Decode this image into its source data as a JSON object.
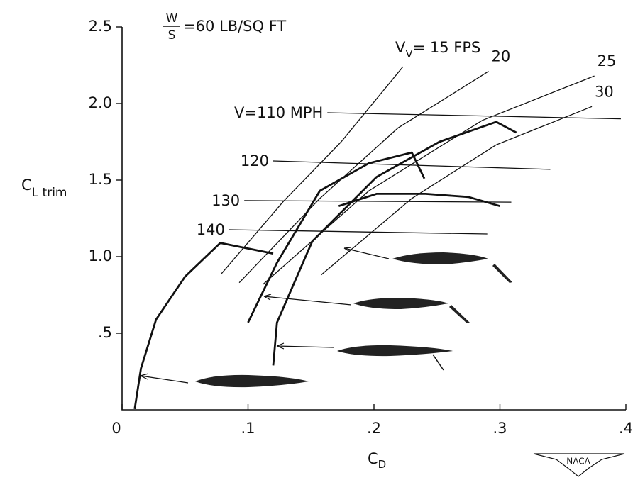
{
  "chart_data": {
    "type": "line",
    "title": {
      "num": "W",
      "den": "S",
      "rest": "=60 LB/SQ FT"
    },
    "vv_label": {
      "main": "V",
      "sub": "V",
      "rest": "= 15 FPS"
    },
    "y_label": {
      "main": "C",
      "sub": "L trim"
    },
    "x_label": {
      "main": "C",
      "sub": "D"
    },
    "xlim": [
      0,
      0.4
    ],
    "ylim": [
      0,
      2.5
    ],
    "xticks": [
      0,
      {
        "value": 0.1,
        "label": ".1"
      },
      {
        "value": 0.2,
        "label": ".2"
      },
      {
        "value": 0.3,
        "label": ".3"
      },
      {
        "value": 0.4,
        "label": ".4"
      }
    ],
    "yticks": [
      {
        "value": 0.5,
        "label": ".5"
      },
      {
        "value": 1.0,
        "label": "1.0"
      },
      {
        "value": 1.5,
        "label": "1.5"
      },
      {
        "value": 2.0,
        "label": "2.0"
      },
      {
        "value": 2.5,
        "label": "2.5"
      }
    ],
    "color": "#111111",
    "series": [
      {
        "x": [
          0.079,
          0.128,
          0.174,
          0.223
        ],
        "values": [
          0.89,
          1.36,
          1.75,
          2.24
        ]
      },
      {
        "name": "20",
        "x": [
          0.093,
          0.157,
          0.219,
          0.291
        ],
        "values": [
          0.83,
          1.38,
          1.84,
          2.21
        ]
      },
      {
        "name": "25",
        "x": [
          0.112,
          0.196,
          0.286,
          0.375
        ],
        "values": [
          0.82,
          1.43,
          1.89,
          2.18
        ]
      },
      {
        "name": "30",
        "x": [
          0.158,
          0.23,
          0.297,
          0.373
        ],
        "values": [
          0.88,
          1.38,
          1.73,
          1.98
        ]
      },
      {
        "name": "V=110 MPH",
        "x": [
          0.163,
          0.396
        ],
        "values": [
          1.94,
          1.9
        ]
      },
      {
        "name": "120",
        "x": [
          0.12,
          0.34
        ],
        "values": [
          1.625,
          1.57
        ]
      },
      {
        "name": "130",
        "x": [
          0.097,
          0.309
        ],
        "values": [
          1.366,
          1.356
        ]
      },
      {
        "name": "140",
        "x": [
          0.085,
          0.29
        ],
        "values": [
          1.176,
          1.148
        ]
      }
    ],
    "trim_curves": [
      {
        "x": [
          0.01,
          0.015,
          0.027,
          0.05,
          0.078,
          0.12
        ],
        "values": [
          0.005,
          0.27,
          0.59,
          0.87,
          1.09,
          1.02
        ]
      },
      {
        "x": [
          0.1,
          0.123,
          0.157,
          0.196,
          0.23,
          0.24
        ],
        "values": [
          0.57,
          0.96,
          1.43,
          1.61,
          1.68,
          1.51
        ]
      },
      {
        "x": [
          0.12,
          0.123,
          0.151,
          0.202,
          0.252,
          0.297,
          0.313
        ],
        "values": [
          0.29,
          0.57,
          1.1,
          1.52,
          1.75,
          1.88,
          1.81
        ]
      },
      {
        "x": [
          0.172,
          0.202,
          0.241,
          0.275,
          0.3
        ],
        "values": [
          1.33,
          1.41,
          1.41,
          1.39,
          1.33
        ]
      }
    ]
  },
  "logo": {
    "text": "NACA"
  }
}
